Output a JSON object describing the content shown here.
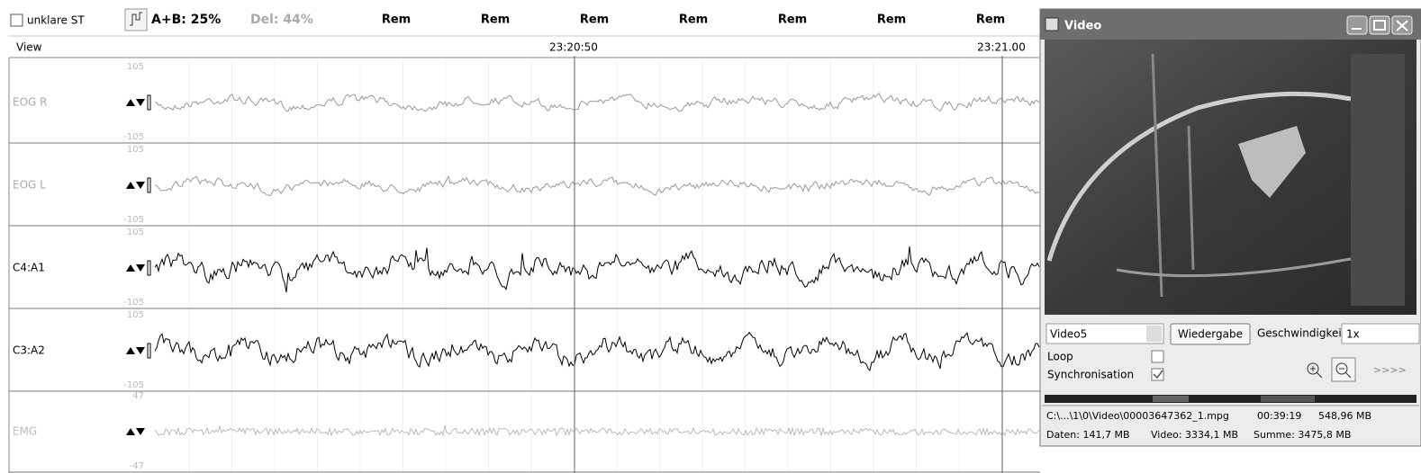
{
  "toolbar": {
    "checkbox_label": "unklare ST",
    "ab_score": "A+B: 25%",
    "del_score": "Del: 44%",
    "stages": [
      "Rem",
      "Rem",
      "Rem",
      "Rem",
      "Rem",
      "Rem",
      "Rem"
    ]
  },
  "timeline": {
    "view": "View",
    "times": [
      "23:20:50",
      "23:21.00"
    ]
  },
  "channels": [
    {
      "label": "EOG R",
      "max": "105",
      "min": "-105"
    },
    {
      "label": "EOG L",
      "max": "105",
      "min": "-105"
    },
    {
      "label": "C4:A1",
      "max": "105",
      "min": "-105"
    },
    {
      "label": "C3:A2",
      "max": "105",
      "min": "-105"
    },
    {
      "label": "EMG",
      "max": "47",
      "min": "-47"
    }
  ],
  "video": {
    "title": "Video",
    "source": "Video5",
    "play_button": "Wiedergabe",
    "speed_label": "Geschwindigkeit",
    "speed": "1x",
    "loop": "Loop",
    "sync": "Synchronisation",
    "more": ">>>>",
    "file": "C:\\...\\1\\0\\Video\\00003647362_1.mpg",
    "duration": "00:39:19",
    "file_size": "548,96 MB",
    "data_size": "Daten: 141,7 MB",
    "video_size": "Video: 3334,1 MB",
    "total_size": "Summe: 3475,8 MB"
  }
}
